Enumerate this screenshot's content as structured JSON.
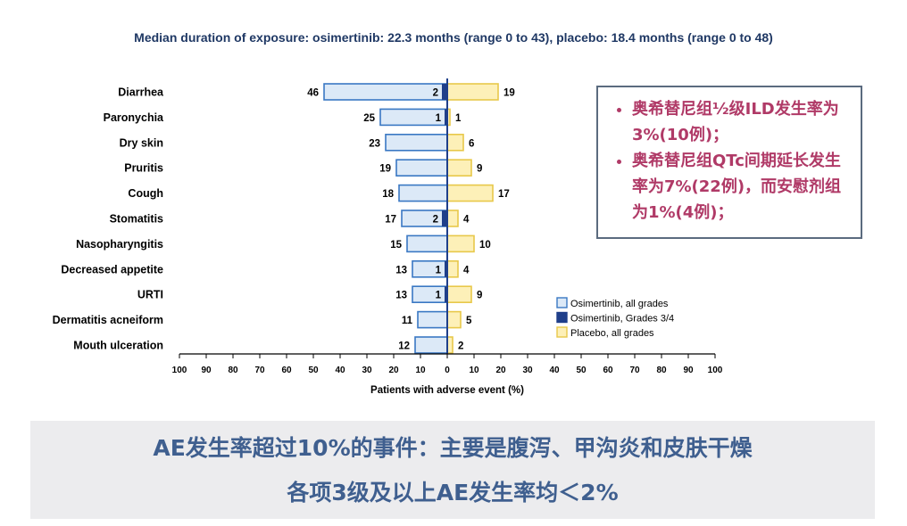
{
  "subtitle": "Median duration of exposure: osimertinib: 22.3 months (range 0 to 43), placebo: 18.4 months (range 0 to 48)",
  "callout": {
    "items": [
      "奥希替尼组½级ILD发生率为3%(10例)；",
      "奥希替尼组QTc间期延长发生率为7%(22例)，而安慰剂组为1%(4例)；"
    ]
  },
  "banner": {
    "line1": "AE发生率超过10%的事件：主要是腹泻、甲沟炎和皮肤干燥",
    "line2": "各项3级及以上AE发生率均＜2%"
  },
  "colors": {
    "osimertinib_all": "#dce9f7",
    "osimertinib_border": "#3a78c3",
    "osimertinib_g34": "#1f3f8a",
    "placebo_all": "#fdf0b8",
    "placebo_border": "#e8c84a"
  },
  "chart_data": {
    "type": "bar",
    "orientation": "horizontal-butterfly",
    "xlabel": "Patients with adverse event (%)",
    "xlim": [
      -100,
      100
    ],
    "x_ticks": [
      "100",
      "90",
      "80",
      "70",
      "60",
      "50",
      "40",
      "30",
      "20",
      "10",
      "0",
      "10",
      "20",
      "30",
      "40",
      "50",
      "60",
      "70",
      "80",
      "90",
      "100"
    ],
    "categories": [
      "Diarrhea",
      "Paronychia",
      "Dry skin",
      "Pruritis",
      "Cough",
      "Stomatitis",
      "Nasopharyngitis",
      "Decreased appetite",
      "URTI",
      "Dermatitis acneiform",
      "Mouth ulceration"
    ],
    "series": [
      {
        "name": "Osimertinib, all grades",
        "side": "left",
        "values": [
          46,
          25,
          23,
          19,
          18,
          17,
          15,
          13,
          13,
          11,
          12
        ]
      },
      {
        "name": "Osimertinib, Grades 3/4",
        "side": "left",
        "values": [
          2,
          1,
          null,
          null,
          null,
          2,
          null,
          1,
          1,
          null,
          null
        ]
      },
      {
        "name": "Placebo, all grades",
        "side": "right",
        "values": [
          19,
          1,
          6,
          9,
          17,
          4,
          10,
          4,
          9,
          5,
          2
        ]
      }
    ],
    "legend_position": "bottom-right",
    "grid": false
  }
}
